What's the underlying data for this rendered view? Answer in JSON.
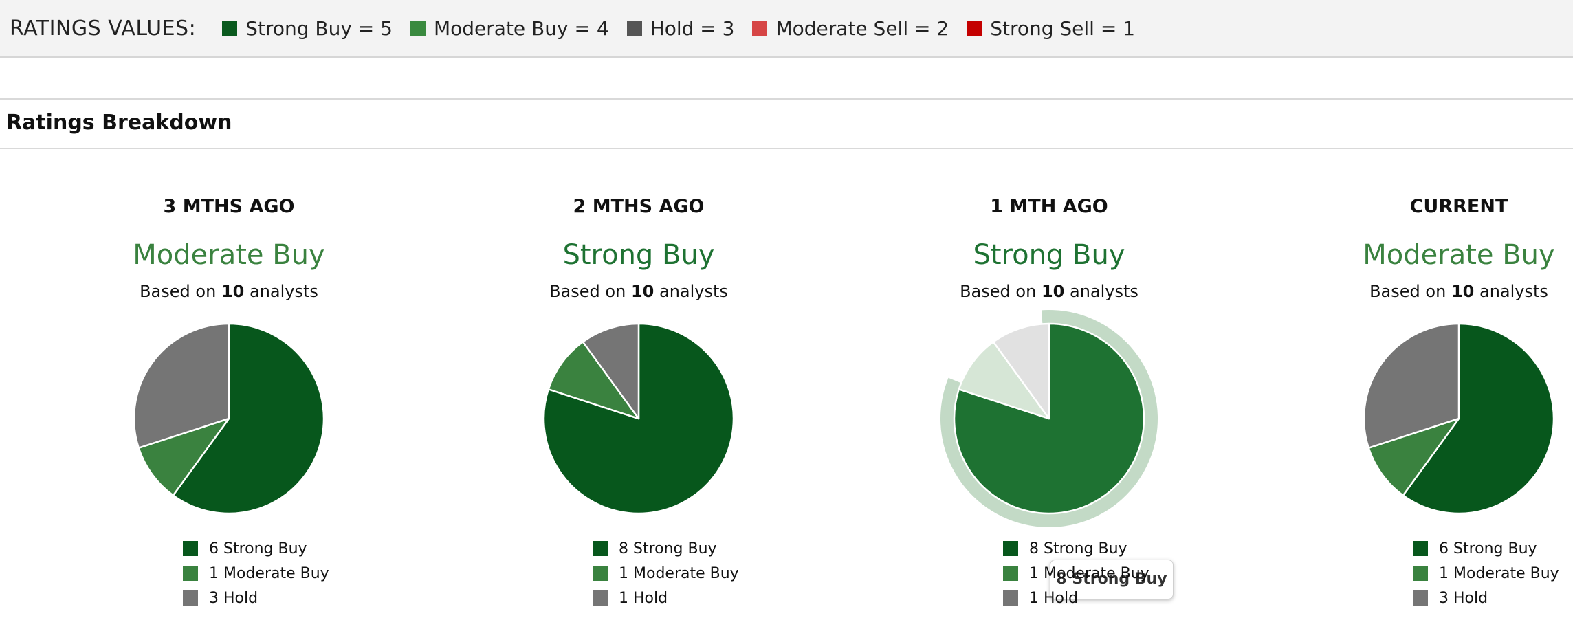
{
  "ratings_values": {
    "title": "RATINGS VALUES:",
    "items": [
      {
        "label": "Strong Buy = 5",
        "color": "#0a5a1e"
      },
      {
        "label": "Moderate Buy = 4",
        "color": "#3a8a3f"
      },
      {
        "label": "Hold = 3",
        "color": "#555555"
      },
      {
        "label": "Moderate Sell = 2",
        "color": "#d64545"
      },
      {
        "label": "Strong Sell = 1",
        "color": "#c40000"
      }
    ]
  },
  "section_title": "Ratings Breakdown",
  "colors": {
    "strong_buy": "#07571c",
    "moderate_buy": "#3a823f",
    "hold": "#757575",
    "strong_buy_hover": "#1e7232",
    "moderate_buy_faded": "#d6e6d6",
    "hold_faded": "#e1e1e1",
    "halo": "#c3dac6"
  },
  "tooltip": "8 Strong Buy",
  "chart_data": [
    {
      "type": "pie",
      "title": "3 MTHS AGO",
      "rating": "Moderate Buy",
      "rating_color": "#3a823f",
      "basis_prefix": "Based on",
      "analysts": "10",
      "basis_suffix": "analysts",
      "slices": [
        {
          "name": "Strong Buy",
          "value": 6,
          "label": "6",
          "color": "#07571c"
        },
        {
          "name": "Moderate Buy",
          "value": 1,
          "label": "1",
          "color": "#3a823f"
        },
        {
          "name": "Hold",
          "value": 3,
          "label": "3",
          "color": "#757575"
        }
      ]
    },
    {
      "type": "pie",
      "title": "2 MTHS AGO",
      "rating": "Strong Buy",
      "rating_color": "#1e7232",
      "basis_prefix": "Based on",
      "analysts": "10",
      "basis_suffix": "analysts",
      "slices": [
        {
          "name": "Strong Buy",
          "value": 8,
          "label": "8",
          "color": "#07571c"
        },
        {
          "name": "Moderate Buy",
          "value": 1,
          "label": "1",
          "color": "#3a823f"
        },
        {
          "name": "Hold",
          "value": 1,
          "label": "1",
          "color": "#757575"
        }
      ]
    },
    {
      "type": "pie",
      "title": "1 MTH AGO",
      "rating": "Strong Buy",
      "rating_color": "#1e7232",
      "basis_prefix": "Based on",
      "analysts": "10",
      "basis_suffix": "analysts",
      "highlighted_slice": "Strong Buy",
      "slices": [
        {
          "name": "Strong Buy",
          "value": 8,
          "label": "8",
          "color": "#1e7232"
        },
        {
          "name": "Moderate Buy",
          "value": 1,
          "label": "1",
          "color": "#d6e6d6"
        },
        {
          "name": "Hold",
          "value": 1,
          "label": "1",
          "color": "#e1e1e1"
        }
      ]
    },
    {
      "type": "pie",
      "title": "CURRENT",
      "rating": "Moderate Buy",
      "rating_color": "#3a823f",
      "basis_prefix": "Based on",
      "analysts": "10",
      "basis_suffix": "analysts",
      "slices": [
        {
          "name": "Strong Buy",
          "value": 6,
          "label": "6",
          "color": "#07571c"
        },
        {
          "name": "Moderate Buy",
          "value": 1,
          "label": "1",
          "color": "#3a823f"
        },
        {
          "name": "Hold",
          "value": 3,
          "label": "3",
          "color": "#757575"
        }
      ]
    }
  ]
}
